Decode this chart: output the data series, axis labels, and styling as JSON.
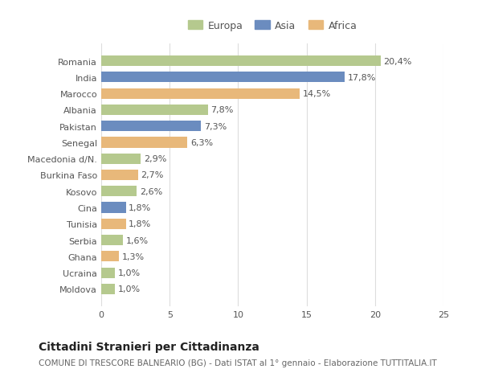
{
  "countries": [
    "Romania",
    "India",
    "Marocco",
    "Albania",
    "Pakistan",
    "Senegal",
    "Macedonia d/N.",
    "Burkina Faso",
    "Kosovo",
    "Cina",
    "Tunisia",
    "Serbia",
    "Ghana",
    "Ucraina",
    "Moldova"
  ],
  "values": [
    20.4,
    17.8,
    14.5,
    7.8,
    7.3,
    6.3,
    2.9,
    2.7,
    2.6,
    1.8,
    1.8,
    1.6,
    1.3,
    1.0,
    1.0
  ],
  "labels": [
    "20,4%",
    "17,8%",
    "14,5%",
    "7,8%",
    "7,3%",
    "6,3%",
    "2,9%",
    "2,7%",
    "2,6%",
    "1,8%",
    "1,8%",
    "1,6%",
    "1,3%",
    "1,0%",
    "1,0%"
  ],
  "continents": [
    "Europa",
    "Asia",
    "Africa",
    "Europa",
    "Asia",
    "Africa",
    "Europa",
    "Africa",
    "Europa",
    "Asia",
    "Africa",
    "Europa",
    "Africa",
    "Europa",
    "Europa"
  ],
  "colors": {
    "Europa": "#b5c98e",
    "Asia": "#6b8cbf",
    "Africa": "#e8b87a"
  },
  "xlim": [
    0,
    25
  ],
  "xticks": [
    0,
    5,
    10,
    15,
    20,
    25
  ],
  "title": "Cittadini Stranieri per Cittadinanza",
  "subtitle": "COMUNE DI TRESCORE BALNEARIO (BG) - Dati ISTAT al 1° gennaio - Elaborazione TUTTITALIA.IT",
  "background_color": "#ffffff",
  "grid_color": "#dddddd",
  "bar_height": 0.65,
  "label_fontsize": 8.0,
  "tick_fontsize": 8.0,
  "title_fontsize": 10,
  "subtitle_fontsize": 7.5
}
